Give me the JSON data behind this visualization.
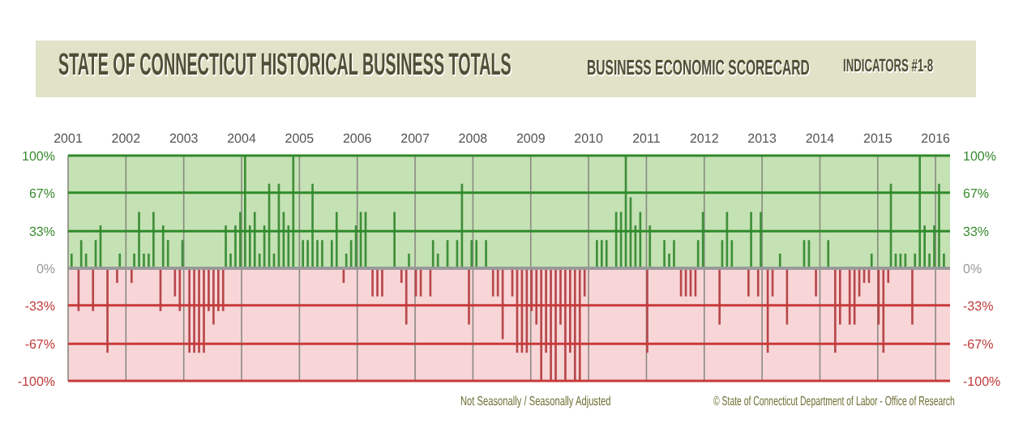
{
  "chart_data": {
    "type": "bar",
    "title": "STATE OF CONNECTICUT HISTORICAL BUSINESS TOTALS",
    "subtitle": "BUSINESS ECONOMIC SCORECARD",
    "annotations": [
      "INDICATORS #1-8",
      "Not Seasonally / Seasonally Adjusted",
      "© State of Connecticut Department of Labor - Office of Research"
    ],
    "x": [
      "2001-02",
      "2001-03",
      "2001-04",
      "2001-05",
      "2001-06",
      "2001-07",
      "2001-08",
      "2001-09",
      "2001-10",
      "2001-11",
      "2001-12",
      "2002-01",
      "2002-02",
      "2002-03",
      "2002-04",
      "2002-05",
      "2002-06",
      "2002-07",
      "2002-08",
      "2002-09",
      "2002-10",
      "2002-11",
      "2002-12",
      "2003-01",
      "2003-02",
      "2003-03",
      "2003-04",
      "2003-05",
      "2003-06",
      "2003-07",
      "2003-08",
      "2003-09",
      "2003-10",
      "2003-11",
      "2003-12",
      "2004-01",
      "2004-02",
      "2004-03",
      "2004-04",
      "2004-05",
      "2004-06",
      "2004-07",
      "2004-08",
      "2004-09",
      "2004-10",
      "2004-11",
      "2004-12",
      "2005-01",
      "2005-02",
      "2005-03",
      "2005-04",
      "2005-05",
      "2005-06",
      "2005-07",
      "2005-08",
      "2005-09",
      "2005-10",
      "2005-11",
      "2005-12",
      "2006-01",
      "2006-02",
      "2006-03",
      "2006-04",
      "2006-05",
      "2006-06",
      "2006-07",
      "2006-08",
      "2006-09",
      "2006-10",
      "2006-11",
      "2006-12",
      "2007-01",
      "2007-02",
      "2007-03",
      "2007-04",
      "2007-05",
      "2007-06",
      "2007-07",
      "2007-08",
      "2007-09",
      "2007-10",
      "2007-11",
      "2007-12",
      "2008-01",
      "2008-02",
      "2008-03",
      "2008-04",
      "2008-05",
      "2008-06",
      "2008-07",
      "2008-08",
      "2008-09",
      "2008-10",
      "2008-11",
      "2008-12",
      "2009-01",
      "2009-02",
      "2009-03",
      "2009-04",
      "2009-05",
      "2009-06",
      "2009-07",
      "2009-08",
      "2009-09",
      "2009-10",
      "2009-11",
      "2009-12",
      "2010-01",
      "2010-02",
      "2010-03",
      "2010-04",
      "2010-05",
      "2010-06",
      "2010-07",
      "2010-08",
      "2010-09",
      "2010-10",
      "2010-11",
      "2010-12",
      "2011-01",
      "2011-02",
      "2011-03",
      "2011-04",
      "2011-05",
      "2011-06",
      "2011-07",
      "2011-08",
      "2011-09",
      "2011-10",
      "2011-11",
      "2011-12",
      "2012-01",
      "2012-02",
      "2012-03",
      "2012-04",
      "2012-05",
      "2012-06",
      "2012-07",
      "2012-08",
      "2012-09",
      "2012-10",
      "2012-11",
      "2012-12",
      "2013-01",
      "2013-02",
      "2013-03",
      "2013-04",
      "2013-05",
      "2013-06",
      "2013-07",
      "2013-08",
      "2013-09",
      "2013-10",
      "2013-11",
      "2013-12",
      "2014-01",
      "2014-02",
      "2014-03",
      "2014-04",
      "2014-05",
      "2014-06",
      "2014-07",
      "2014-08",
      "2014-09",
      "2014-10",
      "2014-11",
      "2014-12",
      "2015-01",
      "2015-02",
      "2015-03",
      "2015-04",
      "2015-05",
      "2015-06",
      "2015-07",
      "2015-08",
      "2015-09",
      "2015-10",
      "2015-11",
      "2015-12",
      "2016-01",
      "2016-02",
      "2016-03"
    ],
    "series": [
      {
        "color": "#3f8f3a",
        "values": [
          13,
          null,
          25,
          13,
          null,
          25,
          38,
          null,
          null,
          null,
          13,
          null,
          null,
          13,
          50,
          13,
          13,
          50,
          null,
          38,
          25,
          null,
          null,
          25,
          null,
          null,
          null,
          null,
          null,
          null,
          null,
          null,
          38,
          13,
          38,
          50,
          100,
          38,
          50,
          13,
          38,
          75,
          13,
          75,
          50,
          38,
          100,
          null,
          25,
          25,
          75,
          25,
          25,
          null,
          25,
          50,
          null,
          13,
          25,
          38,
          50,
          50,
          null,
          null,
          null,
          null,
          null,
          50,
          null,
          null,
          13,
          null,
          null,
          null,
          null,
          25,
          13,
          null,
          25,
          null,
          25,
          75,
          null,
          25,
          25,
          null,
          25,
          null,
          null,
          null,
          null,
          null,
          null,
          null,
          null,
          null,
          null,
          null,
          null,
          null,
          null,
          null,
          null,
          null,
          null,
          null,
          null,
          null,
          null,
          25,
          25,
          25,
          null,
          50,
          50,
          100,
          63,
          38,
          50,
          null,
          38,
          null,
          null,
          25,
          13,
          25,
          null,
          null,
          null,
          null,
          25,
          50,
          null,
          null,
          null,
          25,
          50,
          25,
          null,
          null,
          null,
          50,
          null,
          50,
          null,
          null,
          null,
          13,
          null,
          null,
          null,
          null,
          25,
          25,
          null,
          null,
          null,
          25,
          null,
          null,
          null,
          null,
          null,
          null,
          null,
          null,
          13,
          null,
          null,
          null,
          75,
          13,
          13,
          13,
          null,
          13,
          100,
          38,
          13,
          38,
          75,
          13
        ]
      },
      {
        "color": "#b8474a",
        "values": [
          null,
          -38,
          null,
          null,
          -38,
          null,
          null,
          -75,
          null,
          -13,
          null,
          null,
          -13,
          null,
          null,
          null,
          null,
          null,
          -38,
          null,
          null,
          -25,
          -38,
          null,
          -75,
          -75,
          -75,
          -75,
          -38,
          -50,
          -38,
          -38,
          null,
          null,
          null,
          null,
          null,
          null,
          null,
          null,
          null,
          null,
          null,
          null,
          null,
          null,
          null,
          null,
          null,
          null,
          null,
          null,
          null,
          null,
          null,
          null,
          -13,
          null,
          null,
          null,
          null,
          null,
          -25,
          -25,
          -25,
          null,
          null,
          null,
          -13,
          -50,
          null,
          -25,
          -25,
          null,
          -25,
          null,
          null,
          null,
          null,
          null,
          null,
          null,
          -50,
          null,
          null,
          null,
          null,
          -25,
          -25,
          -63,
          null,
          -25,
          -75,
          -75,
          -75,
          -38,
          -50,
          -100,
          -75,
          -100,
          -100,
          -50,
          -100,
          -75,
          -100,
          -100,
          -25,
          null,
          null,
          null,
          null,
          null,
          null,
          null,
          null,
          null,
          null,
          null,
          null,
          -75,
          null,
          null,
          null,
          null,
          null,
          null,
          -25,
          -25,
          -25,
          -25,
          null,
          null,
          null,
          null,
          -50,
          null,
          null,
          null,
          null,
          null,
          -25,
          null,
          -25,
          null,
          -75,
          -25,
          null,
          null,
          -50,
          null,
          null,
          null,
          null,
          null,
          -25,
          null,
          null,
          null,
          -75,
          -50,
          null,
          -50,
          -50,
          -25,
          -13,
          -13,
          null,
          -50,
          -75,
          -13,
          null,
          null,
          null,
          null,
          -50,
          null,
          null,
          null,
          null,
          null,
          null,
          null
        ]
      }
    ],
    "xlim": [
      "2001",
      "2016-04"
    ],
    "xticks": [
      "2001",
      "2002",
      "2003",
      "2004",
      "2005",
      "2006",
      "2007",
      "2008",
      "2009",
      "2010",
      "2011",
      "2012",
      "2013",
      "2014",
      "2015",
      "2016"
    ],
    "ylim": [
      -100,
      100
    ],
    "yticks": [
      {
        "value": -100,
        "label": "-100%"
      },
      {
        "value": -67,
        "label": "-67%"
      },
      {
        "value": -33,
        "label": "-33%"
      },
      {
        "value": 0,
        "label": "0%"
      },
      {
        "value": 33,
        "label": "33%"
      },
      {
        "value": 67,
        "label": "67%"
      },
      {
        "value": 100,
        "label": "100%"
      }
    ],
    "y2lim": [
      -100,
      100
    ],
    "y2ticks": [
      {
        "value": -100,
        "label": "-100%"
      },
      {
        "value": -67,
        "label": "-67%"
      },
      {
        "value": -33,
        "label": "-33%"
      },
      {
        "value": 0,
        "label": "0%"
      },
      {
        "value": 33,
        "label": "33%"
      },
      {
        "value": 67,
        "label": "67%"
      },
      {
        "value": 100,
        "label": "100%"
      }
    ],
    "bands": [
      {
        "axis": "y",
        "from": 0,
        "to": 100,
        "color": "#c4e2b4"
      },
      {
        "axis": "y",
        "from": -100,
        "to": 0,
        "color": "#f8d6d8"
      }
    ],
    "grid": true
  }
}
